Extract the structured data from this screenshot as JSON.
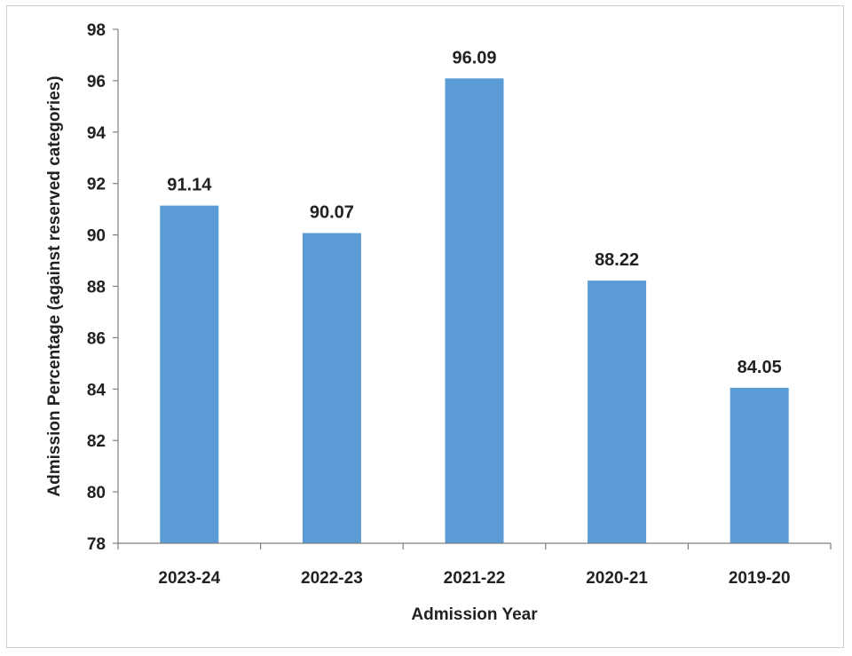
{
  "chart_data": {
    "type": "bar",
    "categories": [
      "2023-24",
      "2022-23",
      "2021-22",
      "2020-21",
      "2019-20"
    ],
    "series": [
      {
        "values": [
          91.14,
          90.07,
          96.09,
          88.22,
          84.05
        ]
      }
    ],
    "data_labels": [
      "91.14",
      "90.07",
      "96.09",
      "88.22",
      "84.05"
    ],
    "title": "",
    "xlabel": "Admission Year",
    "ylabel": "Admission Percentage (against reserved categories)",
    "ylim": [
      78,
      98
    ],
    "yticks": [
      "78",
      "80",
      "82",
      "84",
      "86",
      "88",
      "90",
      "92",
      "94",
      "96",
      "98"
    ],
    "grid": false,
    "legend": "none",
    "bar_color": "#5b9bd5",
    "axis_color": "#7f7f7f"
  }
}
